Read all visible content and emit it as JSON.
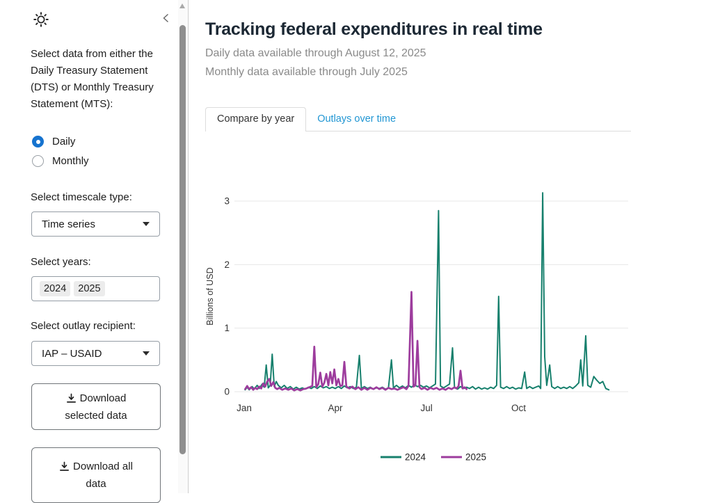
{
  "theme": {
    "accent": "#1673cf",
    "link": "#2196d3",
    "title_color": "#1c2834",
    "subtitle_color": "#8a8a8a"
  },
  "icons": {
    "mode_toggle": "sun-icon",
    "collapse": "chevron-left-icon",
    "dropdown": "caret-down-icon",
    "download": "download-icon",
    "scroll_up": "triangle-up-icon"
  },
  "sidebar": {
    "intro_label": "Select data from either the Daily Treasury Statement (DTS) or Monthly Treasury Statement (MTS):",
    "radio_options": [
      {
        "label": "Daily",
        "selected": true
      },
      {
        "label": "Monthly",
        "selected": false
      }
    ],
    "timescale": {
      "label": "Select timescale type:",
      "value": "Time series"
    },
    "years": {
      "label": "Select years:",
      "values": [
        "2024",
        "2025"
      ]
    },
    "recipient": {
      "label": "Select outlay recipient:",
      "value": "IAP – USAID"
    },
    "download_selected_label": "Download selected data",
    "download_all_label": "Download all data"
  },
  "main": {
    "title": "Tracking federal expenditures in real time",
    "subtitle_daily": "Daily data available through August 12, 2025",
    "subtitle_monthly": "Monthly data available through July 2025",
    "tabs": [
      {
        "label": "Compare by year",
        "active": true
      },
      {
        "label": "Outlays over time",
        "active": false
      }
    ]
  },
  "chart_data": {
    "type": "line",
    "title": "",
    "xlabel": "",
    "ylabel": "Billions of USD",
    "x_unit": "day of year",
    "xlim": [
      -10,
      383
    ],
    "ylim": [
      0,
      3.2
    ],
    "grid": "horizontal-only",
    "legend_position": "bottom-center",
    "x_ticks": [
      {
        "label": "Jan",
        "day": 0
      },
      {
        "label": "Apr",
        "day": 91
      },
      {
        "label": "Jul",
        "day": 182
      },
      {
        "label": "Oct",
        "day": 274
      }
    ],
    "y_ticks": [
      0,
      1,
      2,
      3
    ],
    "series": [
      {
        "name": "2024",
        "color": "#17806d",
        "points": [
          [
            1,
            0.03
          ],
          [
            3,
            0.07
          ],
          [
            5,
            0.03
          ],
          [
            8,
            0.08
          ],
          [
            10,
            0.04
          ],
          [
            13,
            0.1
          ],
          [
            15,
            0.05
          ],
          [
            18,
            0.12
          ],
          [
            20,
            0.07
          ],
          [
            22,
            0.42
          ],
          [
            24,
            0.06
          ],
          [
            26,
            0.1
          ],
          [
            28,
            0.59
          ],
          [
            30,
            0.08
          ],
          [
            32,
            0.16
          ],
          [
            34,
            0.1
          ],
          [
            37,
            0.06
          ],
          [
            40,
            0.1
          ],
          [
            43,
            0.05
          ],
          [
            46,
            0.08
          ],
          [
            49,
            0.04
          ],
          [
            52,
            0.07
          ],
          [
            55,
            0.04
          ],
          [
            58,
            0.06
          ],
          [
            61,
            0.04
          ],
          [
            64,
            0.07
          ],
          [
            67,
            0.05
          ],
          [
            70,
            0.08
          ],
          [
            73,
            0.05
          ],
          [
            76,
            0.09
          ],
          [
            79,
            0.06
          ],
          [
            82,
            0.08
          ],
          [
            85,
            0.05
          ],
          [
            88,
            0.07
          ],
          [
            91,
            0.05
          ],
          [
            94,
            0.08
          ],
          [
            97,
            0.05
          ],
          [
            100,
            0.09
          ],
          [
            103,
            0.06
          ],
          [
            106,
            0.08
          ],
          [
            109,
            0.05
          ],
          [
            112,
            0.07
          ],
          [
            115,
            0.57
          ],
          [
            117,
            0.05
          ],
          [
            120,
            0.08
          ],
          [
            123,
            0.05
          ],
          [
            126,
            0.07
          ],
          [
            129,
            0.04
          ],
          [
            132,
            0.06
          ],
          [
            135,
            0.05
          ],
          [
            138,
            0.07
          ],
          [
            141,
            0.04
          ],
          [
            144,
            0.06
          ],
          [
            147,
            0.5
          ],
          [
            149,
            0.06
          ],
          [
            152,
            0.1
          ],
          [
            155,
            0.06
          ],
          [
            158,
            0.09
          ],
          [
            161,
            0.06
          ],
          [
            164,
            0.1
          ],
          [
            167,
            0.07
          ],
          [
            170,
            0.11
          ],
          [
            173,
            0.08
          ],
          [
            176,
            0.1
          ],
          [
            179,
            0.07
          ],
          [
            182,
            0.09
          ],
          [
            185,
            0.06
          ],
          [
            188,
            0.09
          ],
          [
            191,
            0.12
          ],
          [
            194,
            2.85
          ],
          [
            196,
            0.09
          ],
          [
            199,
            0.06
          ],
          [
            202,
            0.09
          ],
          [
            205,
            0.12
          ],
          [
            208,
            0.69
          ],
          [
            210,
            0.06
          ],
          [
            213,
            0.04
          ],
          [
            216,
            0.08
          ],
          [
            219,
            0.05
          ],
          [
            222,
            0.07
          ],
          [
            225,
            0.05
          ],
          [
            228,
            0.08
          ],
          [
            231,
            0.04
          ],
          [
            234,
            0.07
          ],
          [
            237,
            0.04
          ],
          [
            240,
            0.06
          ],
          [
            243,
            0.04
          ],
          [
            246,
            0.07
          ],
          [
            249,
            0.05
          ],
          [
            252,
            0.1
          ],
          [
            254,
            1.5
          ],
          [
            256,
            0.07
          ],
          [
            259,
            0.05
          ],
          [
            262,
            0.08
          ],
          [
            265,
            0.05
          ],
          [
            268,
            0.07
          ],
          [
            271,
            0.04
          ],
          [
            274,
            0.06
          ],
          [
            277,
            0.05
          ],
          [
            280,
            0.31
          ],
          [
            282,
            0.05
          ],
          [
            285,
            0.08
          ],
          [
            288,
            0.05
          ],
          [
            291,
            0.07
          ],
          [
            294,
            0.09
          ],
          [
            296,
            0.05
          ],
          [
            298,
            3.13
          ],
          [
            300,
            0.55
          ],
          [
            302,
            0.1
          ],
          [
            305,
            0.42
          ],
          [
            307,
            0.08
          ],
          [
            310,
            0.05
          ],
          [
            313,
            0.08
          ],
          [
            316,
            0.05
          ],
          [
            319,
            0.07
          ],
          [
            322,
            0.05
          ],
          [
            325,
            0.08
          ],
          [
            328,
            0.05
          ],
          [
            331,
            0.09
          ],
          [
            334,
            0.14
          ],
          [
            336,
            0.5
          ],
          [
            338,
            0.09
          ],
          [
            341,
            0.88
          ],
          [
            343,
            0.1
          ],
          [
            346,
            0.07
          ],
          [
            349,
            0.24
          ],
          [
            352,
            0.18
          ],
          [
            355,
            0.13
          ],
          [
            358,
            0.16
          ],
          [
            361,
            0.05
          ],
          [
            364,
            0.03
          ]
        ]
      },
      {
        "name": "2025",
        "color": "#9d3c9d",
        "points": [
          [
            1,
            0.04
          ],
          [
            3,
            0.09
          ],
          [
            5,
            0.04
          ],
          [
            7,
            0.07
          ],
          [
            9,
            0.03
          ],
          [
            11,
            0.06
          ],
          [
            13,
            0.04
          ],
          [
            15,
            0.08
          ],
          [
            17,
            0.05
          ],
          [
            19,
            0.13
          ],
          [
            21,
            0.08
          ],
          [
            23,
            0.16
          ],
          [
            25,
            0.2
          ],
          [
            27,
            0.09
          ],
          [
            29,
            0.15
          ],
          [
            31,
            0.06
          ],
          [
            33,
            0.04
          ],
          [
            35,
            0.06
          ],
          [
            38,
            0.03
          ],
          [
            41,
            0.05
          ],
          [
            44,
            0.03
          ],
          [
            47,
            0.05
          ],
          [
            50,
            0.02
          ],
          [
            53,
            0.04
          ],
          [
            56,
            0.02
          ],
          [
            59,
            0.04
          ],
          [
            62,
            0.05
          ],
          [
            65,
            0.07
          ],
          [
            68,
            0.09
          ],
          [
            70,
            0.71
          ],
          [
            72,
            0.07
          ],
          [
            74,
            0.12
          ],
          [
            76,
            0.3
          ],
          [
            78,
            0.08
          ],
          [
            80,
            0.14
          ],
          [
            82,
            0.28
          ],
          [
            84,
            0.1
          ],
          [
            86,
            0.31
          ],
          [
            88,
            0.13
          ],
          [
            90,
            0.35
          ],
          [
            92,
            0.1
          ],
          [
            94,
            0.2
          ],
          [
            96,
            0.09
          ],
          [
            98,
            0.1
          ],
          [
            100,
            0.47
          ],
          [
            102,
            0.08
          ],
          [
            105,
            0.05
          ],
          [
            108,
            0.08
          ],
          [
            111,
            0.04
          ],
          [
            114,
            0.07
          ],
          [
            117,
            0.03
          ],
          [
            120,
            0.06
          ],
          [
            123,
            0.03
          ],
          [
            126,
            0.06
          ],
          [
            129,
            0.04
          ],
          [
            132,
            0.07
          ],
          [
            135,
            0.04
          ],
          [
            138,
            0.06
          ],
          [
            141,
            0.03
          ],
          [
            144,
            0.06
          ],
          [
            147,
            0.04
          ],
          [
            150,
            0.05
          ],
          [
            153,
            0.03
          ],
          [
            156,
            0.05
          ],
          [
            159,
            0.07
          ],
          [
            162,
            0.04
          ],
          [
            164,
            0.09
          ],
          [
            167,
            1.57
          ],
          [
            169,
            0.08
          ],
          [
            171,
            0.1
          ],
          [
            173,
            0.8
          ],
          [
            175,
            0.07
          ],
          [
            177,
            0.04
          ],
          [
            180,
            0.06
          ],
          [
            183,
            0.03
          ],
          [
            186,
            0.06
          ],
          [
            189,
            0.04
          ],
          [
            192,
            0.06
          ],
          [
            195,
            0.03
          ],
          [
            198,
            0.05
          ],
          [
            201,
            0.03
          ],
          [
            204,
            0.06
          ],
          [
            207,
            0.04
          ],
          [
            210,
            0.07
          ],
          [
            212,
            0.05
          ],
          [
            214,
            0.09
          ],
          [
            216,
            0.33
          ],
          [
            218,
            0.05
          ],
          [
            220,
            0.07
          ],
          [
            222,
            0.04
          ]
        ]
      }
    ]
  }
}
